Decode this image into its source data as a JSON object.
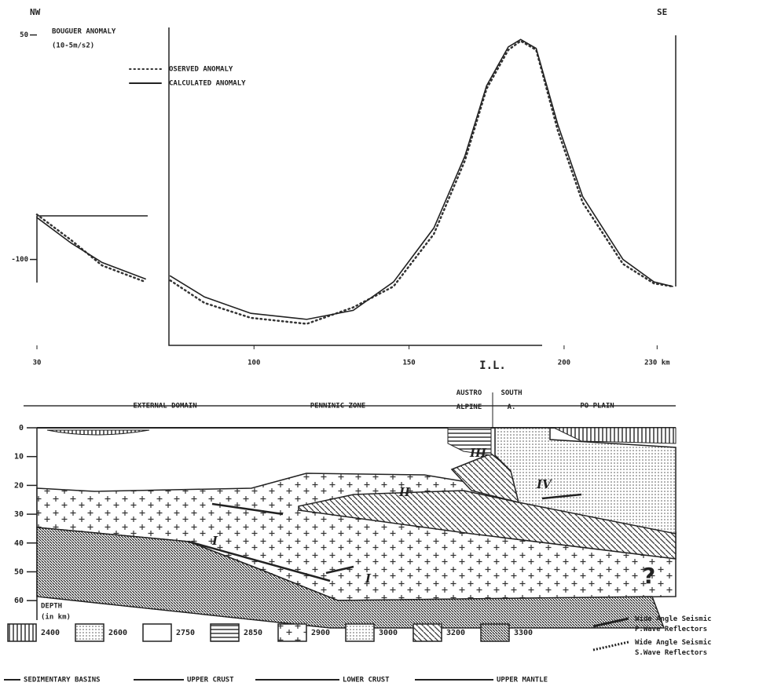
{
  "chart_data": {
    "type": "line",
    "title_left": "NW",
    "title_right": "SE",
    "y_label": "BOUGUER ANOMALY",
    "y_unit": "(10-5m/s2)",
    "x": [
      30,
      41,
      51,
      65,
      70,
      73,
      84,
      99,
      117,
      132,
      145,
      158,
      168,
      175,
      182,
      186,
      191,
      198,
      206,
      219,
      229,
      235
    ],
    "series": [
      {
        "name": "OSERVED ANOMALY",
        "color": "#333333",
        "dash": "dotted",
        "values": [
          -70,
          -87,
          -104,
          -115,
          null,
          -114,
          -129,
          -139,
          -143,
          -132,
          -118,
          -83,
          -34,
          14,
          40,
          46,
          40,
          -14,
          -62,
          -103,
          -116,
          -118
        ]
      },
      {
        "name": "CALCULATED ANOMALY",
        "color": "#222222",
        "dash": "solid",
        "values": [
          -72,
          -89,
          -102,
          -113,
          null,
          -111,
          -125,
          -136,
          -140,
          -134,
          -115,
          -79,
          -31,
          16,
          42,
          47,
          41,
          -10,
          -58,
          -100,
          -115,
          -118
        ]
      }
    ],
    "xlim": [
      30,
      236
    ],
    "ylim": [
      -160,
      55
    ],
    "xticks": [
      30,
      100,
      150,
      200,
      {
        "value": 230,
        "label": "230 km"
      }
    ],
    "yticks": [
      50,
      -100
    ],
    "marker_label": "I.L."
  },
  "section": {
    "domains": [
      "EXTERNAL DOMAIN",
      "PENNINIC ZONE",
      "AUSTRO ALPINE",
      "SOUTH A.",
      "PO PLAIN"
    ],
    "depth_ticks": [
      "0",
      "10",
      "20",
      "30",
      "40",
      "50",
      "60"
    ],
    "depth_label": "DEPTH",
    "depth_unit": "(in km)",
    "reflector_marks": [
      "I",
      "II",
      "III",
      "IV",
      "I"
    ],
    "question": "?",
    "density_legend": [
      "2400",
      "2600",
      "2750",
      "2850",
      "2900",
      "3000",
      "3200",
      "3300"
    ],
    "reflector_legend": [
      "Wide Angle Seismic P.Wave Reflectors",
      "Wide Angle Seismic S.Wave Reflectors"
    ],
    "boundary_legend": [
      "SEDIMENTARY BASINS",
      "UPPER CRUST",
      "LOWER CRUST",
      "UPPER MANTLE"
    ]
  }
}
